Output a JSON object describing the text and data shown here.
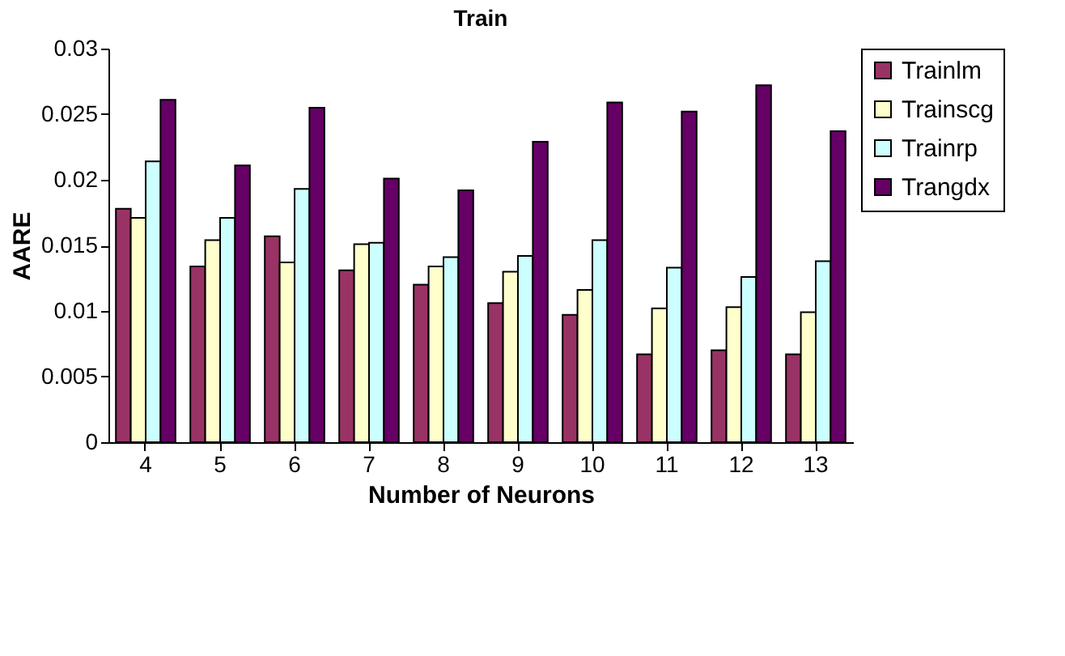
{
  "chart_data": {
    "type": "bar",
    "title": "Train",
    "xlabel": "Number of Neurons",
    "ylabel": "AARE",
    "categories": [
      "4",
      "5",
      "6",
      "7",
      "8",
      "9",
      "10",
      "11",
      "12",
      "13"
    ],
    "series": [
      {
        "name": "Trainlm",
        "color": "#993366",
        "values": [
          0.0178,
          0.0134,
          0.0157,
          0.0131,
          0.012,
          0.0106,
          0.0097,
          0.0067,
          0.007,
          0.0067
        ]
      },
      {
        "name": "Trainscg",
        "color": "#ffffcc",
        "values": [
          0.0171,
          0.0154,
          0.0137,
          0.0151,
          0.0134,
          0.013,
          0.0116,
          0.0102,
          0.0103,
          0.0099
        ]
      },
      {
        "name": "Trainrp",
        "color": "#ccffff",
        "values": [
          0.0214,
          0.0171,
          0.0193,
          0.0152,
          0.0141,
          0.0142,
          0.0154,
          0.0133,
          0.0126,
          0.0138
        ]
      },
      {
        "name": "Trangdx",
        "color": "#660066",
        "values": [
          0.0261,
          0.0211,
          0.0255,
          0.0201,
          0.0192,
          0.0229,
          0.0259,
          0.0252,
          0.0272,
          0.0237
        ]
      }
    ],
    "ylim": [
      0,
      0.03
    ],
    "yticks": [
      0,
      0.005,
      0.01,
      0.015,
      0.02,
      0.025,
      0.03
    ],
    "grid": false,
    "legend": "top right"
  }
}
